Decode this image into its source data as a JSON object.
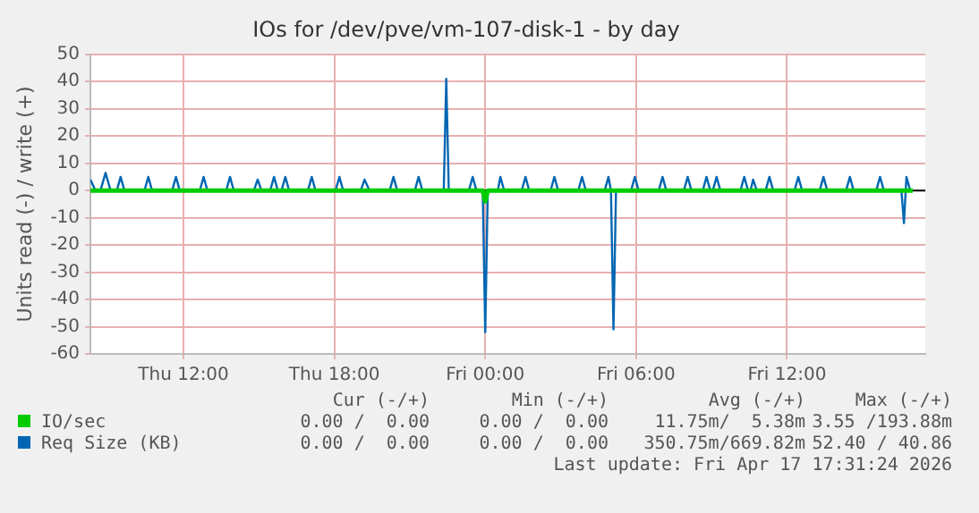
{
  "chart_data": {
    "type": "line",
    "title": "IOs for /dev/pve/vm-107-disk-1 - by day",
    "ylabel": "Units read (-) / write (+)",
    "xlim": [
      "2026-04-16T08:18",
      "2026-04-17T17:30"
    ],
    "xticks": [
      {
        "value": "2026-04-16T12:00",
        "label": "Thu 12:00"
      },
      {
        "value": "2026-04-16T18:00",
        "label": "Thu 18:00"
      },
      {
        "value": "2026-04-17T00:00",
        "label": "Fri 00:00"
      },
      {
        "value": "2026-04-17T06:00",
        "label": "Fri 06:00"
      },
      {
        "value": "2026-04-17T12:00",
        "label": "Fri 12:00"
      }
    ],
    "ylim": [
      -60,
      50
    ],
    "yticks": [
      -60,
      -50,
      -40,
      -30,
      -20,
      -10,
      0,
      10,
      20,
      30,
      40,
      50
    ],
    "grid": true,
    "legend": "bottom",
    "marker": "none",
    "ref_lines": [
      {
        "axis": "y",
        "value": 0,
        "color": "#000000"
      }
    ],
    "series": [
      {
        "name": "IO/sec",
        "color": "#00cc00",
        "x": [
          "2026-04-16T08:18",
          "2026-04-16T23:54",
          "2026-04-17T00:00",
          "2026-04-17T00:06",
          "2026-04-17T17:00"
        ],
        "values": [
          0,
          0,
          -4,
          0,
          0
        ]
      },
      {
        "name": "Req Size (KB)",
        "color": "#0066b3",
        "x": [
          "2026-04-16T08:18",
          "2026-04-16T08:30",
          "2026-04-16T08:42",
          "2026-04-16T08:54",
          "2026-04-16T09:06",
          "2026-04-16T09:21",
          "2026-04-16T09:30",
          "2026-04-16T09:39",
          "2026-04-16T10:27",
          "2026-04-16T10:36",
          "2026-04-16T10:45",
          "2026-04-16T11:33",
          "2026-04-16T11:42",
          "2026-04-16T11:51",
          "2026-04-16T12:39",
          "2026-04-16T12:48",
          "2026-04-16T12:57",
          "2026-04-16T13:42",
          "2026-04-16T13:51",
          "2026-04-16T14:00",
          "2026-04-16T14:48",
          "2026-04-16T14:57",
          "2026-04-16T15:06",
          "2026-04-16T15:27",
          "2026-04-16T15:36",
          "2026-04-16T15:45",
          "2026-04-16T15:54",
          "2026-04-16T16:03",
          "2026-04-16T16:12",
          "2026-04-16T16:57",
          "2026-04-16T17:06",
          "2026-04-16T17:15",
          "2026-04-16T18:03",
          "2026-04-16T18:12",
          "2026-04-16T18:21",
          "2026-04-16T19:03",
          "2026-04-16T19:12",
          "2026-04-16T19:24",
          "2026-04-16T20:12",
          "2026-04-16T20:21",
          "2026-04-16T20:30",
          "2026-04-16T21:12",
          "2026-04-16T21:21",
          "2026-04-16T21:30",
          "2026-04-16T22:21",
          "2026-04-16T22:27",
          "2026-04-16T22:33",
          "2026-04-16T23:21",
          "2026-04-16T23:30",
          "2026-04-16T23:39",
          "2026-04-16T23:54",
          "2026-04-17T00:00",
          "2026-04-17T00:06",
          "2026-04-17T00:30",
          "2026-04-17T00:36",
          "2026-04-17T00:45",
          "2026-04-17T01:27",
          "2026-04-17T01:36",
          "2026-04-17T01:45",
          "2026-04-17T02:36",
          "2026-04-17T02:45",
          "2026-04-17T02:54",
          "2026-04-17T03:42",
          "2026-04-17T03:51",
          "2026-04-17T04:00",
          "2026-04-17T04:45",
          "2026-04-17T04:54",
          "2026-04-17T05:00",
          "2026-04-17T05:06",
          "2026-04-17T05:12",
          "2026-04-17T05:48",
          "2026-04-17T05:57",
          "2026-04-17T06:06",
          "2026-04-17T06:54",
          "2026-04-17T07:03",
          "2026-04-17T07:12",
          "2026-04-17T07:54",
          "2026-04-17T08:03",
          "2026-04-17T08:12",
          "2026-04-17T08:39",
          "2026-04-17T08:48",
          "2026-04-17T08:57",
          "2026-04-17T09:03",
          "2026-04-17T09:12",
          "2026-04-17T09:21",
          "2026-04-17T10:09",
          "2026-04-17T10:18",
          "2026-04-17T10:27",
          "2026-04-17T10:33",
          "2026-04-17T10:39",
          "2026-04-17T10:48",
          "2026-04-17T11:09",
          "2026-04-17T11:18",
          "2026-04-17T11:27",
          "2026-04-17T12:18",
          "2026-04-17T12:27",
          "2026-04-17T12:36",
          "2026-04-17T13:18",
          "2026-04-17T13:27",
          "2026-04-17T13:36",
          "2026-04-17T14:21",
          "2026-04-17T14:30",
          "2026-04-17T14:39",
          "2026-04-17T15:33",
          "2026-04-17T15:42",
          "2026-04-17T15:51",
          "2026-04-17T16:33",
          "2026-04-17T16:39",
          "2026-04-17T16:45",
          "2026-04-17T16:54",
          "2026-04-17T17:00"
        ],
        "values": [
          4,
          0,
          0,
          6.5,
          0,
          0,
          5,
          0,
          0,
          5,
          0,
          0,
          5,
          0,
          0,
          5,
          0,
          0,
          5,
          0,
          0,
          4,
          0,
          0,
          5,
          0,
          0,
          5,
          0,
          0,
          5,
          0,
          0,
          5,
          0,
          0,
          4,
          0,
          0,
          5,
          0,
          0,
          5,
          0,
          0,
          41,
          0,
          0,
          5,
          0,
          0,
          -52,
          0,
          0,
          5,
          0,
          0,
          5,
          0,
          0,
          5,
          0,
          0,
          5,
          0,
          0,
          5,
          0,
          -51,
          0,
          0,
          5,
          0,
          0,
          5,
          0,
          0,
          5,
          0,
          0,
          5,
          0,
          0,
          5,
          0,
          0,
          5,
          0,
          0,
          4,
          0,
          0,
          5,
          0,
          0,
          5,
          0,
          0,
          5,
          0,
          0,
          5,
          0,
          0,
          5,
          0,
          0,
          -12,
          5,
          0,
          0
        ]
      }
    ],
    "annotations": [
      "Cur (-/+)",
      "Min (-/+)",
      "Avg (-/+)",
      "Max (-/+)",
      "0.00 /  0.00",
      "0.00 /  0.00",
      "11.75m/  5.38m",
      "3.55 /193.88m",
      "0.00 /  0.00",
      "0.00 /  0.00",
      "350.75m/669.82m",
      "52.40 / 40.86",
      "Last update: Fri Apr 17 17:31:24 2026"
    ]
  }
}
